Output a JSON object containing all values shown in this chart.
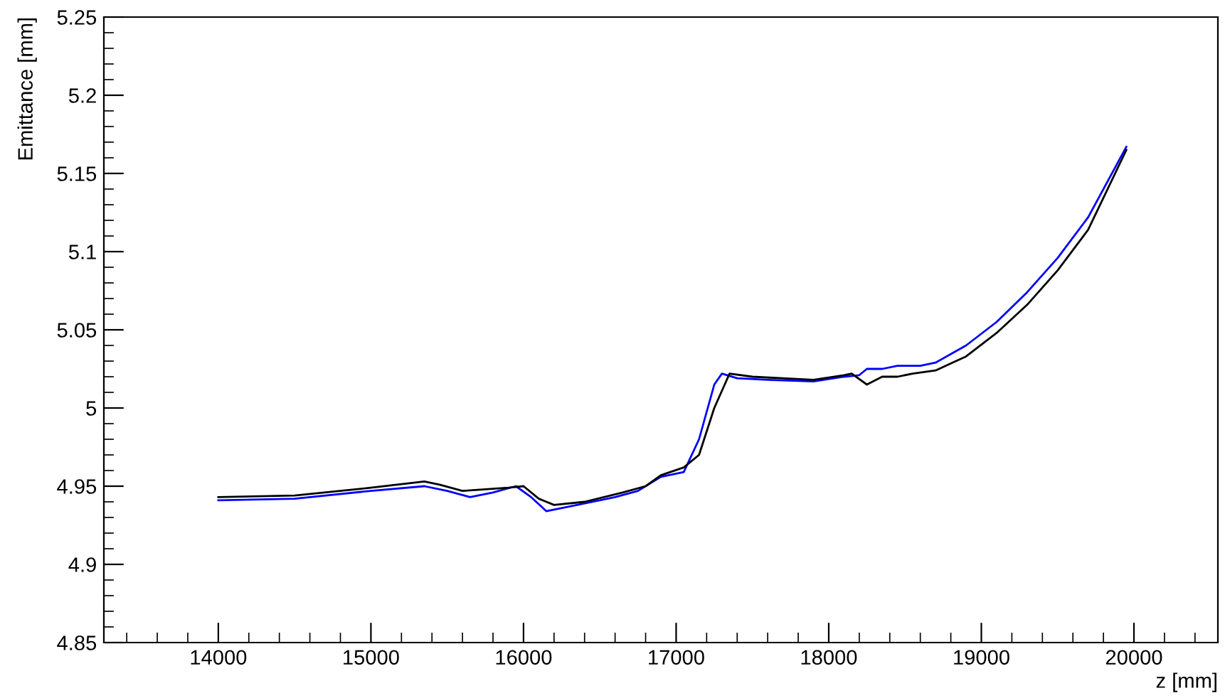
{
  "chart_data": {
    "type": "line",
    "xlabel": "z [mm]",
    "ylabel": "Emittance [mm]",
    "xlim": [
      13250,
      20550
    ],
    "xticks": [
      14000,
      15000,
      16000,
      17000,
      18000,
      19000,
      20000
    ],
    "ylim": [
      4.85,
      5.25
    ],
    "yticks": [
      4.85,
      4.9,
      4.95,
      5,
      5.05,
      5.1,
      5.15,
      5.2,
      5.25
    ],
    "grid": false,
    "marker": "none",
    "line_style": "solid",
    "series": [
      {
        "color": "#0000ff",
        "x": [
          14000,
          14500,
          15000,
          15350,
          15500,
          15650,
          15800,
          15950,
          16050,
          16150,
          16300,
          16600,
          16750,
          16900,
          17050,
          17150,
          17250,
          17300,
          17400,
          17600,
          17900,
          18100,
          18200,
          18250,
          18350,
          18450,
          18600,
          18700,
          18900,
          19100,
          19300,
          19500,
          19700,
          19950
        ],
        "values": [
          4.941,
          4.942,
          4.947,
          4.95,
          4.947,
          4.943,
          4.946,
          4.95,
          4.943,
          4.934,
          4.937,
          4.943,
          4.947,
          4.956,
          4.959,
          4.98,
          5.015,
          5.022,
          5.019,
          5.018,
          5.017,
          5.02,
          5.021,
          5.025,
          5.025,
          5.027,
          5.027,
          5.029,
          5.04,
          5.055,
          5.074,
          5.096,
          5.122,
          5.167
        ]
      },
      {
        "color": "#000000",
        "x": [
          14000,
          14500,
          15000,
          15350,
          15450,
          15600,
          15750,
          15900,
          16000,
          16100,
          16200,
          16400,
          16650,
          16800,
          16900,
          17050,
          17150,
          17250,
          17350,
          17500,
          17900,
          18100,
          18150,
          18250,
          18350,
          18450,
          18550,
          18700,
          18900,
          19100,
          19300,
          19500,
          19700,
          19950
        ],
        "values": [
          4.943,
          4.944,
          4.949,
          4.953,
          4.951,
          4.947,
          4.948,
          4.949,
          4.95,
          4.942,
          4.938,
          4.94,
          4.946,
          4.95,
          4.957,
          4.962,
          4.97,
          5.0,
          5.022,
          5.02,
          5.018,
          5.021,
          5.022,
          5.015,
          5.02,
          5.02,
          5.022,
          5.024,
          5.033,
          5.048,
          5.066,
          5.088,
          5.114,
          5.165
        ]
      }
    ]
  }
}
